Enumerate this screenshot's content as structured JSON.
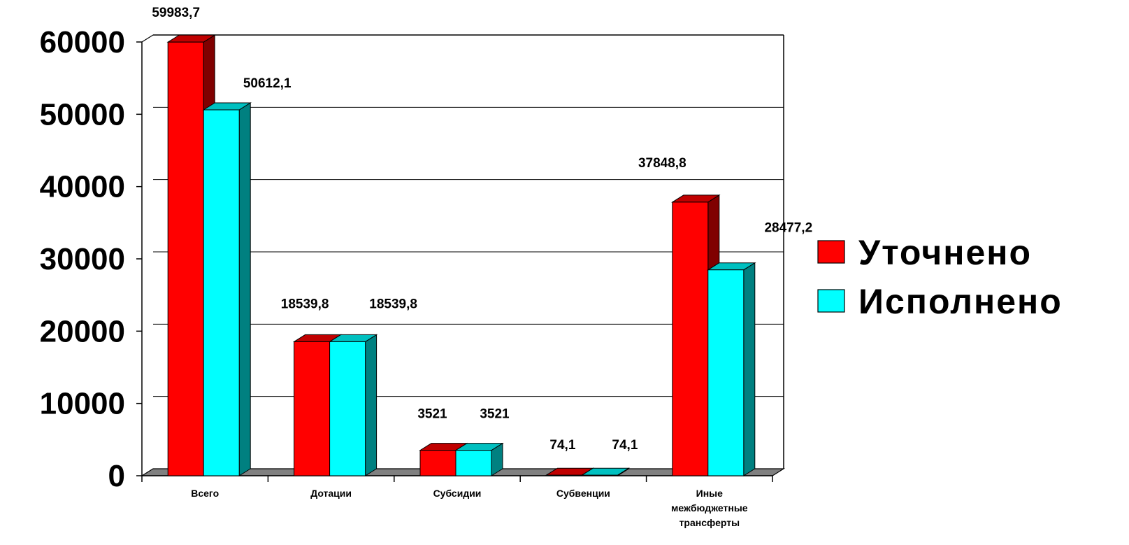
{
  "chart_data": {
    "type": "bar",
    "categories": [
      "Всего",
      "Дотации",
      "Субсидии",
      "Субвенции",
      "Иные межбюджетные трансферты"
    ],
    "category_lines": [
      [
        "Всего"
      ],
      [
        "Дотации"
      ],
      [
        "Субсидии"
      ],
      [
        "Субвенции"
      ],
      [
        "Иные",
        "межбюджетные",
        "трансферты"
      ]
    ],
    "series": [
      {
        "name": "Уточнено",
        "values": [
          59983.7,
          18539.8,
          3521,
          74.1,
          37848.8
        ],
        "labels": [
          "59983,7",
          "18539,8",
          "3521",
          "74,1",
          "37848,8"
        ],
        "color": "#ff0000",
        "side_color": "#800000",
        "top_color": "#c00000"
      },
      {
        "name": "Исполнено",
        "values": [
          50612.1,
          18539.8,
          3521,
          74.1,
          28477.2
        ],
        "labels": [
          "50612,1",
          "18539,8",
          "3521",
          "74,1",
          "28477,2"
        ],
        "color": "#00ffff",
        "side_color": "#008080",
        "top_color": "#00c0c0"
      }
    ],
    "yticks": [
      "0",
      "10000",
      "20000",
      "30000",
      "40000",
      "50000",
      "60000"
    ],
    "ylim": [
      0,
      60000
    ],
    "title": "",
    "xlabel": "",
    "ylabel": "",
    "grid": true,
    "legend": "right",
    "floor_color": "#808080"
  }
}
